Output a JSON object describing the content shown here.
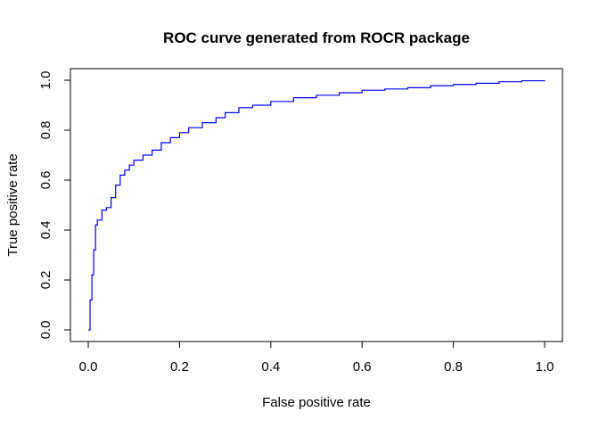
{
  "chart_data": {
    "type": "line",
    "title": "ROC curve generated from ROCR package",
    "xlabel": "False positive rate",
    "ylabel": "True positive rate",
    "xlim": [
      0,
      1
    ],
    "ylim": [
      0,
      1
    ],
    "x_ticks": [
      "0.0",
      "0.2",
      "0.4",
      "0.6",
      "0.8",
      "1.0"
    ],
    "y_ticks": [
      "0.0",
      "0.2",
      "0.4",
      "0.6",
      "0.8",
      "1.0"
    ],
    "grid": false,
    "legend": "none",
    "line_color": "#0000ff",
    "series": [
      {
        "x": [
          0.0,
          0.004,
          0.008,
          0.012,
          0.016,
          0.02,
          0.03,
          0.04,
          0.05,
          0.06,
          0.07,
          0.08,
          0.09,
          0.1,
          0.12,
          0.14,
          0.16,
          0.18,
          0.2,
          0.22,
          0.25,
          0.28,
          0.3,
          0.33,
          0.36,
          0.4,
          0.45,
          0.5,
          0.55,
          0.6,
          0.65,
          0.7,
          0.75,
          0.8,
          0.85,
          0.9,
          0.95,
          1.0
        ],
        "y": [
          0.0,
          0.12,
          0.22,
          0.32,
          0.42,
          0.44,
          0.48,
          0.49,
          0.53,
          0.58,
          0.62,
          0.64,
          0.66,
          0.68,
          0.7,
          0.72,
          0.75,
          0.77,
          0.79,
          0.81,
          0.83,
          0.85,
          0.87,
          0.89,
          0.9,
          0.915,
          0.93,
          0.94,
          0.95,
          0.96,
          0.965,
          0.97,
          0.978,
          0.983,
          0.988,
          0.994,
          0.998,
          1.0
        ]
      }
    ]
  }
}
